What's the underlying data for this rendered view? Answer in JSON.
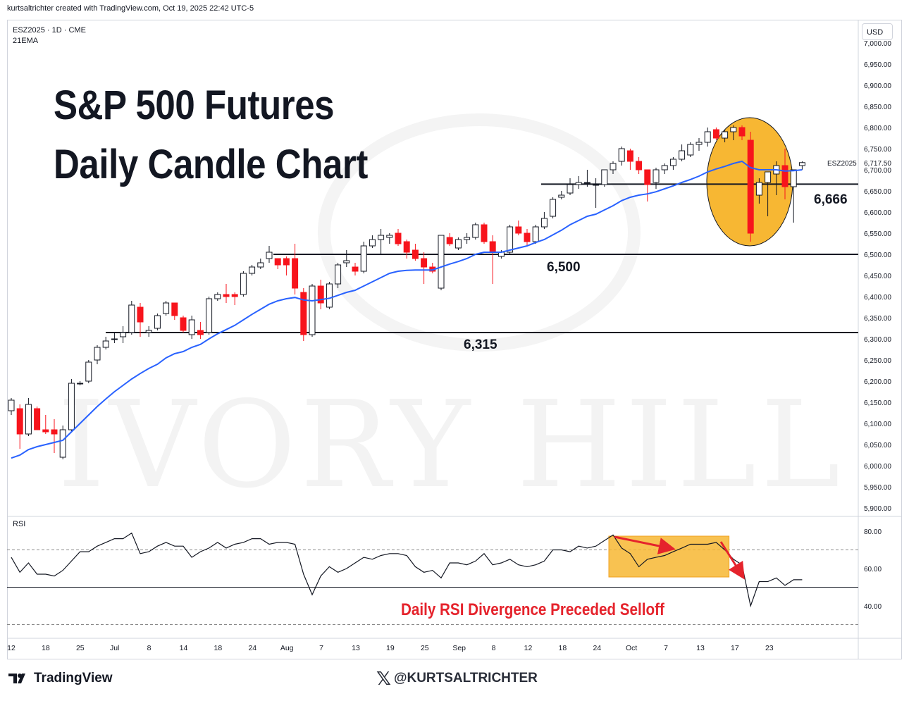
{
  "header": {
    "credit": "kurtsaltrichter created with TradingView.com, Oct 19, 2025 22:42 UTC-5"
  },
  "symbol": {
    "line1": "ESZ2025 · 1D · CME",
    "line2": "21EMA",
    "currency": "USD",
    "label": "ESZ2025",
    "last_price": "6,717.50"
  },
  "title": {
    "line1": "S&P 500 Futures",
    "line2": "Daily Candle Chart"
  },
  "watermark": "IVORY HILL",
  "rsi": {
    "label": "RSI",
    "annotation": "Daily RSI Divergence Preceded Selloff"
  },
  "footer": {
    "brand": "TradingView",
    "handle": "@KURTSALTRICHTER"
  },
  "colors": {
    "up": "#ffffff",
    "down": "#f7141c",
    "ema": "#2962ff",
    "highlight": "#f7b733",
    "annotation": "#e5232c"
  },
  "chart_data": [
    {
      "type": "candlestick",
      "title": "S&P 500 Futures Daily Candle Chart",
      "ylim": [
        5870,
        7020
      ],
      "y_ticks": [
        "5,900.00",
        "5,950.00",
        "6,000.00",
        "6,050.00",
        "6,100.00",
        "6,150.00",
        "6,200.00",
        "6,250.00",
        "6,300.00",
        "6,350.00",
        "6,400.00",
        "6,450.00",
        "6,500.00",
        "6,550.00",
        "6,600.00",
        "6,650.00",
        "6,700.00",
        "6,750.00",
        "6,800.00",
        "6,850.00",
        "6,900.00",
        "6,950.00",
        "7,000.00"
      ],
      "x_ticks": [
        "12",
        "18",
        "25",
        "Jul",
        "8",
        "14",
        "18",
        "24",
        "Aug",
        "7",
        "13",
        "19",
        "25",
        "Sep",
        "8",
        "12",
        "18",
        "24",
        "Oct",
        "7",
        "13",
        "17",
        "23"
      ],
      "levels": [
        {
          "value": 6666,
          "label": "6,666"
        },
        {
          "value": 6500,
          "label": "6,500"
        },
        {
          "value": 6315,
          "label": "6,315"
        }
      ],
      "ohlc": [
        [
          6130,
          6160,
          6120,
          6155
        ],
        [
          6135,
          6145,
          6040,
          6075
        ],
        [
          6075,
          6160,
          6070,
          6145
        ],
        [
          6135,
          6140,
          6085,
          6085
        ],
        [
          6085,
          6120,
          6075,
          6080
        ],
        [
          6085,
          6110,
          6030,
          6075
        ],
        [
          6020,
          6095,
          6015,
          6085
        ],
        [
          6085,
          6205,
          6080,
          6195
        ],
        [
          6195,
          6200,
          6190,
          6195
        ],
        [
          6200,
          6250,
          6195,
          6245
        ],
        [
          6250,
          6285,
          6240,
          6280
        ],
        [
          6280,
          6305,
          6275,
          6295
        ],
        [
          6300,
          6315,
          6290,
          6300
        ],
        [
          6305,
          6330,
          6290,
          6315
        ],
        [
          6315,
          6390,
          6310,
          6380
        ],
        [
          6375,
          6385,
          6305,
          6340
        ],
        [
          6315,
          6330,
          6305,
          6320
        ],
        [
          6325,
          6360,
          6320,
          6355
        ],
        [
          6360,
          6390,
          6355,
          6385
        ],
        [
          6385,
          6375,
          6345,
          6355
        ],
        [
          6350,
          6355,
          6315,
          6320
        ],
        [
          6310,
          6355,
          6300,
          6345
        ],
        [
          6320,
          6340,
          6300,
          6310
        ],
        [
          6315,
          6400,
          6310,
          6395
        ],
        [
          6395,
          6410,
          6390,
          6405
        ],
        [
          6405,
          6430,
          6385,
          6400
        ],
        [
          6405,
          6410,
          6380,
          6400
        ],
        [
          6405,
          6460,
          6400,
          6455
        ],
        [
          6455,
          6475,
          6450,
          6470
        ],
        [
          6470,
          6490,
          6465,
          6480
        ],
        [
          6490,
          6520,
          6480,
          6505
        ],
        [
          6490,
          6490,
          6465,
          6475
        ],
        [
          6490,
          6495,
          6450,
          6475
        ],
        [
          6490,
          6525,
          6405,
          6420
        ],
        [
          6410,
          6420,
          6295,
          6310
        ],
        [
          6310,
          6430,
          6305,
          6425
        ],
        [
          6425,
          6440,
          6370,
          6385
        ],
        [
          6375,
          6435,
          6370,
          6430
        ],
        [
          6430,
          6480,
          6420,
          6475
        ],
        [
          6480,
          6510,
          6470,
          6485
        ],
        [
          6470,
          6480,
          6450,
          6460
        ],
        [
          6460,
          6530,
          6455,
          6520
        ],
        [
          6520,
          6545,
          6515,
          6535
        ],
        [
          6535,
          6560,
          6500,
          6545
        ],
        [
          6540,
          6550,
          6525,
          6545
        ],
        [
          6550,
          6560,
          6520,
          6525
        ],
        [
          6530,
          6535,
          6490,
          6505
        ],
        [
          6510,
          6525,
          6485,
          6490
        ],
        [
          6490,
          6505,
          6430,
          6470
        ],
        [
          6470,
          6480,
          6455,
          6460
        ],
        [
          6420,
          6545,
          6415,
          6545
        ],
        [
          6540,
          6550,
          6520,
          6525
        ],
        [
          6515,
          6540,
          6510,
          6535
        ],
        [
          6535,
          6550,
          6525,
          6540
        ],
        [
          6540,
          6575,
          6535,
          6570
        ],
        [
          6570,
          6575,
          6525,
          6530
        ],
        [
          6530,
          6545,
          6430,
          6505
        ],
        [
          6495,
          6510,
          6490,
          6505
        ],
        [
          6505,
          6570,
          6500,
          6565
        ],
        [
          6565,
          6580,
          6545,
          6550
        ],
        [
          6550,
          6560,
          6520,
          6530
        ],
        [
          6530,
          6570,
          6525,
          6565
        ],
        [
          6565,
          6600,
          6560,
          6585
        ],
        [
          6590,
          6635,
          6585,
          6630
        ],
        [
          6635,
          6650,
          6630,
          6640
        ],
        [
          6645,
          6680,
          6640,
          6665
        ],
        [
          6665,
          6685,
          6655,
          6670
        ],
        [
          6670,
          6700,
          6660,
          6670
        ],
        [
          6665,
          6680,
          6610,
          6665
        ],
        [
          6665,
          6700,
          6660,
          6700
        ],
        [
          6700,
          6720,
          6690,
          6715
        ],
        [
          6720,
          6755,
          6710,
          6750
        ],
        [
          6745,
          6750,
          6700,
          6720
        ],
        [
          6720,
          6730,
          6690,
          6700
        ],
        [
          6700,
          6700,
          6625,
          6665
        ],
        [
          6670,
          6705,
          6655,
          6700
        ],
        [
          6700,
          6715,
          6690,
          6710
        ],
        [
          6710,
          6730,
          6700,
          6725
        ],
        [
          6725,
          6760,
          6720,
          6745
        ],
        [
          6735,
          6765,
          6730,
          6760
        ],
        [
          6760,
          6775,
          6745,
          6765
        ],
        [
          6765,
          6800,
          6755,
          6790
        ],
        [
          6795,
          6800,
          6770,
          6775
        ],
        [
          6775,
          6795,
          6765,
          6790
        ],
        [
          6790,
          6805,
          6770,
          6800
        ],
        [
          6800,
          6805,
          6770,
          6780
        ],
        [
          6770,
          6790,
          6530,
          6550
        ],
        [
          6640,
          6680,
          6620,
          6670
        ],
        [
          6670,
          6695,
          6590,
          6695
        ],
        [
          6690,
          6720,
          6640,
          6710
        ],
        [
          6710,
          6750,
          6630,
          6660
        ],
        [
          6660,
          6700,
          6575,
          6700
        ],
        [
          6710,
          6720,
          6700,
          6717
        ]
      ],
      "ema_21": [
        6018,
        6025,
        6038,
        6045,
        6050,
        6055,
        6060,
        6080,
        6100,
        6120,
        6140,
        6158,
        6175,
        6190,
        6205,
        6218,
        6230,
        6240,
        6255,
        6265,
        6270,
        6280,
        6287,
        6300,
        6312,
        6322,
        6332,
        6345,
        6358,
        6370,
        6382,
        6390,
        6395,
        6398,
        6392,
        6390,
        6393,
        6396,
        6403,
        6410,
        6415,
        6425,
        6435,
        6445,
        6455,
        6460,
        6462,
        6463,
        6463,
        6463,
        6470,
        6477,
        6483,
        6490,
        6500,
        6505,
        6505,
        6505,
        6510,
        6515,
        6520,
        6528,
        6535,
        6546,
        6557,
        6570,
        6580,
        6590,
        6595,
        6605,
        6615,
        6627,
        6635,
        6640,
        6643,
        6648,
        6655,
        6662,
        6670,
        6677,
        6685,
        6695,
        6702,
        6708,
        6715,
        6720,
        6705,
        6700,
        6700,
        6700,
        6697,
        6698,
        6700
      ]
    },
    {
      "type": "line",
      "title": "RSI",
      "ylim": [
        25,
        88
      ],
      "y_ticks": [
        "40.00",
        "60.00",
        "80.00"
      ],
      "bands": [
        30,
        50,
        70
      ],
      "values": [
        66,
        58,
        63,
        57,
        57,
        56,
        59,
        64,
        69,
        69,
        72,
        74,
        76,
        76,
        79,
        68,
        69,
        72,
        74,
        72,
        72,
        66,
        69,
        71,
        74,
        71,
        73,
        74,
        76,
        76,
        73,
        74,
        74,
        73,
        57,
        46,
        56,
        61,
        58,
        60,
        63,
        66,
        65,
        67,
        68,
        68,
        67,
        61,
        58,
        59,
        55,
        63,
        63,
        62,
        64,
        68,
        62,
        63,
        65,
        62,
        61,
        62,
        64,
        70,
        70,
        69,
        72,
        71,
        72,
        75,
        78,
        71,
        68,
        61,
        65,
        66,
        67,
        69,
        71,
        73,
        73,
        73,
        74,
        70,
        65,
        62,
        40,
        53,
        53,
        55,
        51,
        54,
        54
      ],
      "highlight": {
        "from_index": 70,
        "to_index": 83
      },
      "annotation": "Daily RSI Divergence Preceded Selloff"
    }
  ]
}
